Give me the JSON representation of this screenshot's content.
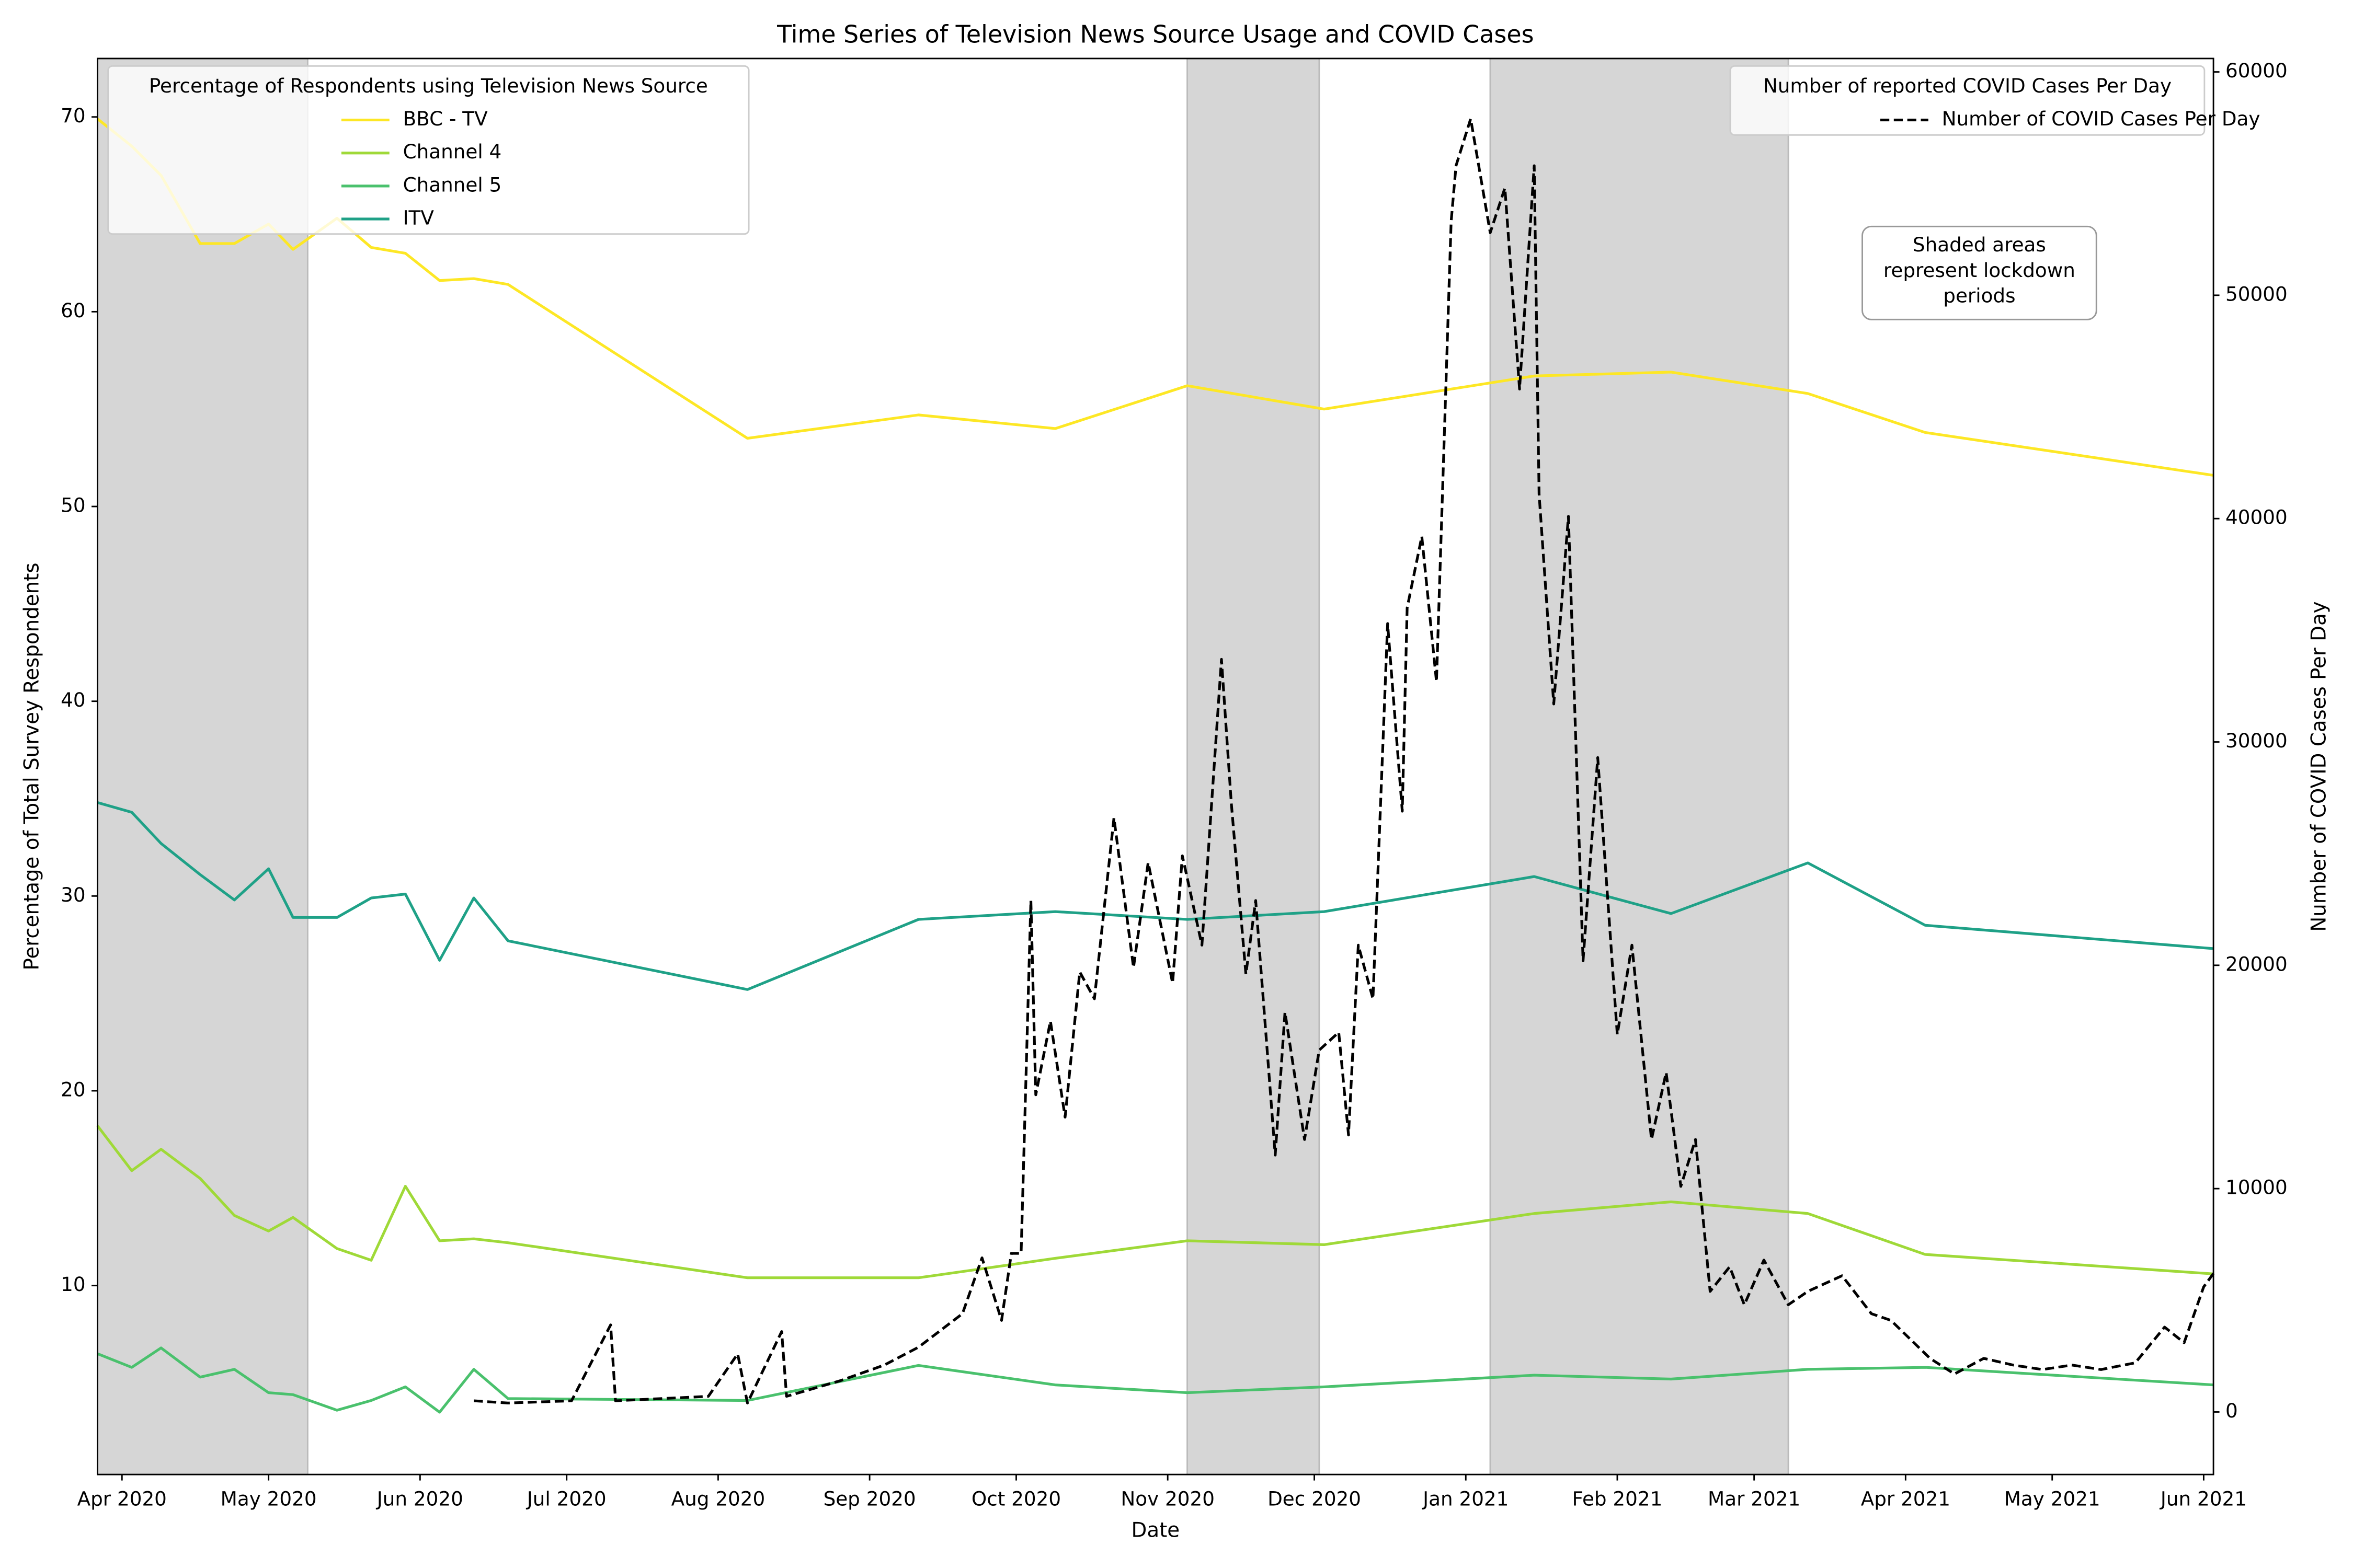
{
  "chart_data": {
    "type": "line",
    "title": "Time Series of Television News Source Usage and COVID Cases",
    "xlabel": "Date",
    "ylabel": "Percentage of Total Survey Respondents",
    "y2label": "Number of COVID Cases Per Day",
    "xlim": [
      "2020-03-27",
      "2021-06-03"
    ],
    "xticks": [
      {
        "value": "2020-04-01",
        "label": "Apr 2020"
      },
      {
        "value": "2020-05-01",
        "label": "May 2020"
      },
      {
        "value": "2020-06-01",
        "label": "Jun 2020"
      },
      {
        "value": "2020-07-01",
        "label": "Jul 2020"
      },
      {
        "value": "2020-08-01",
        "label": "Aug 2020"
      },
      {
        "value": "2020-09-01",
        "label": "Sep 2020"
      },
      {
        "value": "2020-10-01",
        "label": "Oct 2020"
      },
      {
        "value": "2020-11-01",
        "label": "Nov 2020"
      },
      {
        "value": "2020-12-01",
        "label": "Dec 2020"
      },
      {
        "value": "2021-01-01",
        "label": "Jan 2021"
      },
      {
        "value": "2021-02-01",
        "label": "Feb 2021"
      },
      {
        "value": "2021-03-01",
        "label": "Mar 2021"
      },
      {
        "value": "2021-04-01",
        "label": "Apr 2021"
      },
      {
        "value": "2021-05-01",
        "label": "May 2021"
      },
      {
        "value": "2021-06-01",
        "label": "Jun 2021"
      }
    ],
    "ylim": [
      0.3,
      73
    ],
    "yticks": [
      10,
      20,
      30,
      40,
      50,
      60,
      70
    ],
    "y2lim": [
      -2800,
      60600
    ],
    "y2ticks": [
      0,
      10000,
      20000,
      30000,
      40000,
      50000,
      60000
    ],
    "legend_title": "Percentage of Respondents using Television News Source",
    "legend_loc": "upper left",
    "legend2_title": "Number of reported COVID Cases Per Day",
    "legend2_loc": "upper right",
    "annotation": [
      "Shaded areas",
      "represent lockdown",
      "periods"
    ],
    "shade_color": "#d6d6d6",
    "shaded_periods": [
      {
        "start": "2020-03-27",
        "end": "2020-05-09"
      },
      {
        "start": "2020-11-05",
        "end": "2020-12-02"
      },
      {
        "start": "2021-01-06",
        "end": "2021-03-08"
      }
    ],
    "x": [
      "2020-03-27",
      "2020-04-03",
      "2020-04-09",
      "2020-04-17",
      "2020-04-24",
      "2020-05-01",
      "2020-05-06",
      "2020-05-15",
      "2020-05-22",
      "2020-05-29",
      "2020-06-05",
      "2020-06-12",
      "2020-06-19",
      "2020-08-07",
      "2020-09-11",
      "2020-10-09",
      "2020-11-05",
      "2020-12-03",
      "2021-01-15",
      "2021-02-12",
      "2021-03-12",
      "2021-04-05",
      "2021-06-03"
    ],
    "series": [
      {
        "name": "BBC - TV",
        "color": "#fde725",
        "values": [
          69.9,
          68.5,
          67.0,
          63.5,
          63.5,
          64.5,
          63.2,
          64.8,
          63.3,
          63.0,
          61.6,
          61.7,
          61.4,
          53.5,
          54.7,
          54.0,
          56.2,
          55.0,
          56.7,
          56.9,
          55.8,
          53.8,
          51.6
        ]
      },
      {
        "name": "Channel 4",
        "color": "#9fd938",
        "values": [
          18.2,
          15.9,
          17.0,
          15.5,
          13.6,
          12.8,
          13.5,
          11.9,
          11.3,
          15.1,
          12.3,
          12.4,
          12.2,
          10.4,
          10.4,
          11.4,
          12.3,
          12.1,
          13.7,
          14.3,
          13.7,
          11.6,
          10.6
        ]
      },
      {
        "name": "Channel 5",
        "color": "#4ac16d",
        "values": [
          6.5,
          5.8,
          6.8,
          5.3,
          5.7,
          4.5,
          4.4,
          3.6,
          4.1,
          4.8,
          3.5,
          5.7,
          4.2,
          4.1,
          5.9,
          4.9,
          4.5,
          4.8,
          5.4,
          5.2,
          5.7,
          5.8,
          4.9
        ]
      },
      {
        "name": "ITV",
        "color": "#1fa187",
        "values": [
          34.8,
          34.3,
          32.7,
          31.1,
          29.8,
          31.4,
          28.9,
          28.9,
          29.9,
          30.1,
          26.7,
          29.9,
          27.7,
          25.2,
          28.8,
          29.2,
          28.8,
          29.2,
          31.0,
          29.1,
          31.7,
          28.5,
          27.3
        ]
      },
      {
        "name": "Number of COVID Cases Per Day",
        "color": "#000000",
        "linestyle": "dashed",
        "axis": "y2",
        "x": [
          "2020-06-12",
          "2020-06-19",
          "2020-07-02",
          "2020-07-10",
          "2020-07-11",
          "2020-07-30",
          "2020-08-05",
          "2020-08-07",
          "2020-08-14",
          "2020-08-15",
          "2020-08-26",
          "2020-09-04",
          "2020-09-11",
          "2020-09-20",
          "2020-09-24",
          "2020-09-28",
          "2020-09-30",
          "2020-10-02",
          "2020-10-04",
          "2020-10-05",
          "2020-10-08",
          "2020-10-11",
          "2020-10-14",
          "2020-10-17",
          "2020-10-21",
          "2020-10-25",
          "2020-10-28",
          "2020-11-02",
          "2020-11-04",
          "2020-11-08",
          "2020-11-12",
          "2020-11-14",
          "2020-11-17",
          "2020-11-19",
          "2020-11-23",
          "2020-11-25",
          "2020-11-29",
          "2020-12-02",
          "2020-12-06",
          "2020-12-08",
          "2020-12-10",
          "2020-12-13",
          "2020-12-16",
          "2020-12-19",
          "2020-12-20",
          "2020-12-23",
          "2020-12-26",
          "2020-12-29",
          "2020-12-30",
          "2021-01-02",
          "2021-01-06",
          "2021-01-09",
          "2021-01-12",
          "2021-01-15",
          "2021-01-16",
          "2021-01-19",
          "2021-01-22",
          "2021-01-25",
          "2021-01-28",
          "2021-02-01",
          "2021-02-04",
          "2021-02-08",
          "2021-02-11",
          "2021-02-14",
          "2021-02-17",
          "2021-02-20",
          "2021-02-24",
          "2021-02-27",
          "2021-03-03",
          "2021-03-08",
          "2021-03-12",
          "2021-03-19",
          "2021-03-25",
          "2021-03-29",
          "2021-04-06",
          "2021-04-11",
          "2021-04-17",
          "2021-04-23",
          "2021-04-29",
          "2021-05-05",
          "2021-05-11",
          "2021-05-18",
          "2021-05-24",
          "2021-05-28",
          "2021-06-01",
          "2021-06-03"
        ],
        "values": [
          500,
          400,
          500,
          3900,
          500,
          700,
          2600,
          400,
          3600,
          700,
          1400,
          2100,
          2900,
          4400,
          6900,
          4100,
          7100,
          7100,
          22900,
          14200,
          17500,
          13200,
          19700,
          18500,
          26600,
          19900,
          24600,
          19200,
          24900,
          20900,
          33700,
          27300,
          19600,
          22900,
          11500,
          17900,
          12200,
          16200,
          17000,
          12400,
          20900,
          18500,
          35300,
          26900,
          36000,
          39200,
          32700,
          53300,
          55800,
          57900,
          52800,
          54800,
          45800,
          55800,
          41100,
          31700,
          40100,
          20200,
          29300,
          16900,
          20900,
          12200,
          15200,
          10100,
          12200,
          5400,
          6500,
          4800,
          6800,
          4800,
          5400,
          6100,
          4400,
          4100,
          2400,
          1700,
          2400,
          2100,
          1900,
          2100,
          1900,
          2200,
          3800,
          3100,
          5600,
          6200
        ]
      }
    ]
  }
}
